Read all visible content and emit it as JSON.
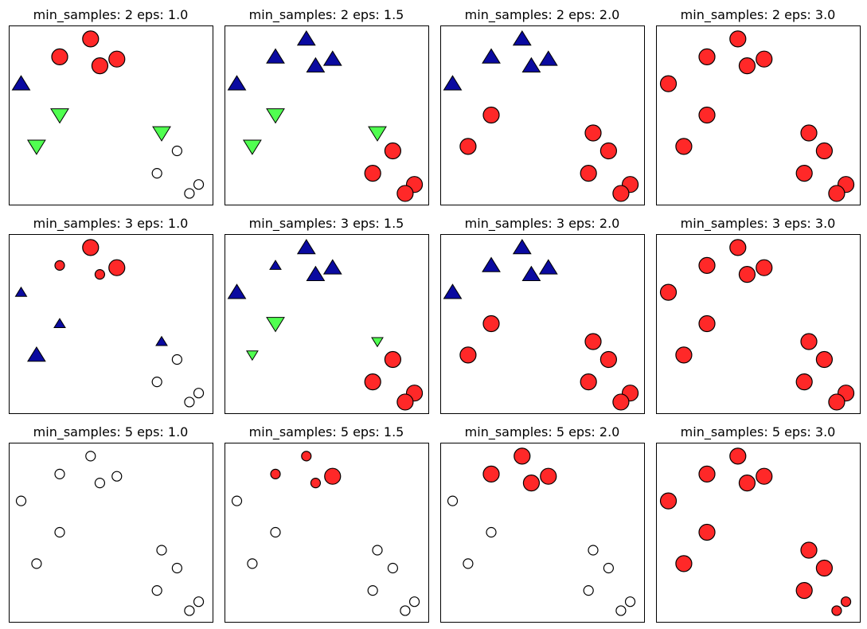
{
  "chart_data": {
    "type": "scatter",
    "description_grid": "3 rows (min_samples) x 4 columns (eps)",
    "point_positions": {
      "x": [
        0.5,
        5.0,
        3.0,
        6.7,
        5.6,
        9.6,
        10.6,
        9.3,
        12.0,
        3.0,
        11.4,
        1.5
      ],
      "y": [
        7.2,
        9.2,
        8.4,
        8.3,
        8.0,
        5.0,
        4.2,
        3.2,
        2.7,
        5.8,
        2.3,
        4.4
      ]
    },
    "point_sizes": {
      "core": "large",
      "border": "small",
      "noise": "small-hollow"
    },
    "cluster_styles": [
      {
        "marker": "circle",
        "color": "#ff2828"
      },
      {
        "marker": "triangle-up",
        "color": "#0a0aa0"
      },
      {
        "marker": "triangle-down",
        "color": "#50ff50"
      }
    ],
    "noise_color": "#ffffff",
    "panels": [
      {
        "title": "min_samples: 2 eps: 1.0",
        "labels": [
          1,
          0,
          0,
          0,
          0,
          2,
          -1,
          -1,
          -1,
          2,
          -1,
          2
        ],
        "core": [
          1,
          1,
          1,
          1,
          1,
          1,
          0,
          0,
          0,
          1,
          0,
          1
        ]
      },
      {
        "title": "min_samples: 2 eps: 1.5",
        "labels": [
          1,
          1,
          1,
          1,
          1,
          2,
          0,
          0,
          0,
          2,
          0,
          2
        ],
        "core": [
          1,
          1,
          1,
          1,
          1,
          1,
          1,
          1,
          1,
          1,
          1,
          1
        ]
      },
      {
        "title": "min_samples: 2 eps: 2.0",
        "labels": [
          1,
          1,
          1,
          1,
          1,
          0,
          0,
          0,
          0,
          0,
          0,
          0
        ],
        "core": [
          1,
          1,
          1,
          1,
          1,
          1,
          1,
          1,
          1,
          1,
          1,
          1
        ]
      },
      {
        "title": "min_samples: 2 eps: 3.0",
        "labels": [
          0,
          0,
          0,
          0,
          0,
          0,
          0,
          0,
          0,
          0,
          0,
          0
        ],
        "core": [
          1,
          1,
          1,
          1,
          1,
          1,
          1,
          1,
          1,
          1,
          1,
          1
        ]
      },
      {
        "title": "min_samples: 3 eps: 1.0",
        "labels": [
          1,
          0,
          0,
          0,
          0,
          1,
          -1,
          -1,
          -1,
          1,
          -1,
          1
        ],
        "core": [
          0,
          1,
          0,
          1,
          0,
          0,
          0,
          0,
          0,
          0,
          0,
          1
        ]
      },
      {
        "title": "min_samples: 3 eps: 1.5",
        "labels": [
          1,
          1,
          1,
          1,
          1,
          2,
          0,
          0,
          0,
          2,
          0,
          2
        ],
        "core": [
          1,
          1,
          0,
          1,
          1,
          0,
          1,
          1,
          1,
          1,
          1,
          0
        ]
      },
      {
        "title": "min_samples: 3 eps: 2.0",
        "labels": [
          1,
          1,
          1,
          1,
          1,
          0,
          0,
          0,
          0,
          0,
          0,
          0
        ],
        "core": [
          1,
          1,
          1,
          1,
          1,
          1,
          1,
          1,
          1,
          1,
          1,
          1
        ]
      },
      {
        "title": "min_samples: 3 eps: 3.0",
        "labels": [
          0,
          0,
          0,
          0,
          0,
          0,
          0,
          0,
          0,
          0,
          0,
          0
        ],
        "core": [
          1,
          1,
          1,
          1,
          1,
          1,
          1,
          1,
          1,
          1,
          1,
          1
        ]
      },
      {
        "title": "min_samples: 5 eps: 1.0",
        "labels": [
          -1,
          -1,
          -1,
          -1,
          -1,
          -1,
          -1,
          -1,
          -1,
          -1,
          -1,
          -1
        ],
        "core": [
          0,
          0,
          0,
          0,
          0,
          0,
          0,
          0,
          0,
          0,
          0,
          0
        ]
      },
      {
        "title": "min_samples: 5 eps: 1.5",
        "labels": [
          -1,
          0,
          0,
          0,
          0,
          -1,
          -1,
          -1,
          -1,
          -1,
          -1,
          -1
        ],
        "core": [
          0,
          0,
          0,
          1,
          0,
          0,
          0,
          0,
          0,
          0,
          0,
          0
        ]
      },
      {
        "title": "min_samples: 5 eps: 2.0",
        "labels": [
          -1,
          0,
          0,
          0,
          0,
          -1,
          -1,
          -1,
          -1,
          -1,
          -1,
          -1
        ],
        "core": [
          0,
          1,
          1,
          1,
          1,
          0,
          0,
          0,
          0,
          0,
          0,
          0
        ]
      },
      {
        "title": "min_samples: 5 eps: 3.0",
        "labels": [
          0,
          0,
          0,
          0,
          0,
          0,
          0,
          0,
          0,
          0,
          0,
          0
        ],
        "core": [
          1,
          1,
          1,
          1,
          1,
          1,
          1,
          1,
          0,
          1,
          0,
          1
        ]
      }
    ]
  }
}
